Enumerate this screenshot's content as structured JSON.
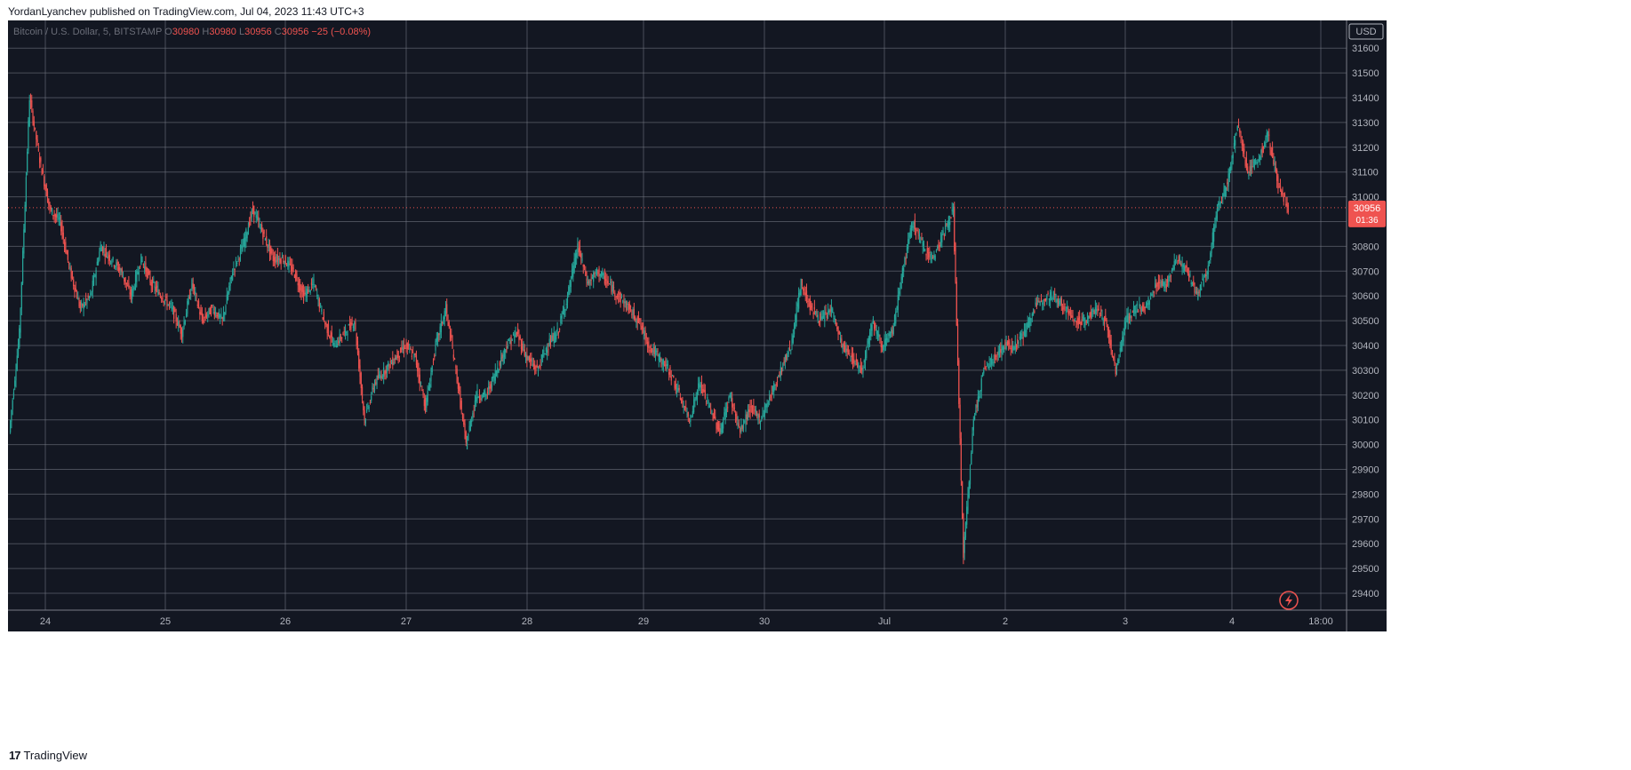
{
  "header": {
    "published_line": "YordanLyanchev published on TradingView.com, Jul 04, 2023 11:43 UTC+3"
  },
  "legend": {
    "symbol": "Bitcoin / U.S. Dollar, 5, BITSTAMP",
    "o_label": "O",
    "o_value": "30980",
    "h_label": "H",
    "h_value": "30980",
    "l_label": "L",
    "l_value": "30956",
    "c_label": "C",
    "c_value": "30956",
    "change": "−25 (−0.08%)"
  },
  "price_axis": {
    "currency": "USD",
    "last_price": "30956",
    "countdown": "01:36"
  },
  "footer": {
    "logo_mark": "17",
    "brand": "TradingView"
  },
  "colors": {
    "background": "#131722",
    "grid": "#787b86",
    "up": "#26a69a",
    "down": "#ef5350",
    "text": "#d1d4dc",
    "axis_text": "#b2b5be",
    "last_price_bg": "#ef5350"
  },
  "chart_data": {
    "type": "candlestick",
    "title": "Bitcoin / U.S. Dollar, 5, BITSTAMP",
    "xlabel": "",
    "ylabel": "",
    "ylim": [
      29310,
      31650
    ],
    "y_ticks": [
      29400,
      29500,
      29600,
      29700,
      29800,
      29900,
      30000,
      30100,
      30200,
      30300,
      30400,
      30500,
      30600,
      30700,
      30800,
      30900,
      31000,
      31100,
      31200,
      31300,
      31400,
      31500,
      31600
    ],
    "x_ticks": [
      "24",
      "25",
      "26",
      "27",
      "28",
      "29",
      "30",
      "Jul",
      "2",
      "3",
      "4",
      "18:00"
    ],
    "grid": true,
    "last_price": 30956,
    "series": [
      {
        "values": [
          30050,
          30450,
          31400,
          31150,
          30950,
          30900,
          30700,
          30550,
          30600,
          30800,
          30750,
          30700,
          30600,
          30750,
          30650,
          30600,
          30550,
          30450,
          30650,
          30500,
          30550,
          30500,
          30700,
          30800,
          30950,
          30850,
          30750,
          30750,
          30700,
          30600,
          30650,
          30500,
          30400,
          30450,
          30500,
          30100,
          30250,
          30300,
          30350,
          30400,
          30350,
          30150,
          30400,
          30550,
          30300,
          30000,
          30200,
          30200,
          30300,
          30400,
          30450,
          30350,
          30300,
          30400,
          30450,
          30600,
          30800,
          30650,
          30700,
          30650,
          30600,
          30550,
          30500,
          30400,
          30350,
          30300,
          30200,
          30100,
          30250,
          30150,
          30050,
          30200,
          30050,
          30150,
          30100,
          30200,
          30300,
          30400,
          30650,
          30550,
          30500,
          30550,
          30400,
          30350,
          30300,
          30500,
          30400,
          30450,
          30700,
          30900,
          30800,
          30750,
          30850,
          30950,
          29550,
          30100,
          30300,
          30350,
          30400,
          30400,
          30450,
          30550,
          30600,
          30600,
          30550,
          30500,
          30500,
          30550,
          30500,
          30300,
          30500,
          30550,
          30550,
          30650,
          30650,
          30750,
          30700,
          30600,
          30700,
          30950,
          31050,
          31300,
          31100,
          31150,
          31250,
          31050,
          30956
        ]
      }
    ]
  }
}
